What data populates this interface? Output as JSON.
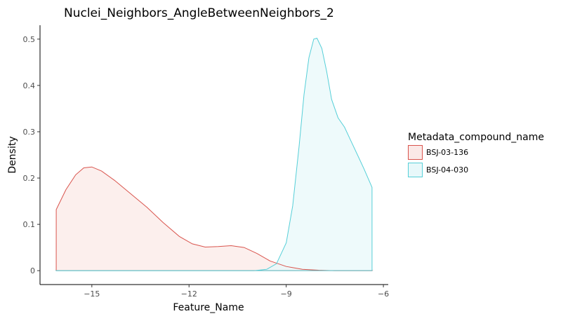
{
  "chart_data": {
    "type": "area",
    "title": "Nuclei_Neighbors_AngleBetweenNeighbors_2",
    "xlabel": "Feature_Name",
    "ylabel": "Density",
    "xlim": [
      -16.6,
      -5.85
    ],
    "ylim": [
      -0.03,
      0.53
    ],
    "xticks": [
      -15,
      -12,
      -9,
      -6
    ],
    "xtick_labels": [
      "−15",
      "−12",
      "−9",
      "−6"
    ],
    "yticks": [
      0,
      0.1,
      0.2,
      0.3,
      0.4,
      0.5
    ],
    "ytick_labels": [
      "0",
      "0.1",
      "0.2",
      "0.3",
      "0.4",
      "0.5"
    ],
    "grid": false,
    "legend": {
      "title": "Metadata_compound_name",
      "position": "right"
    },
    "series": [
      {
        "name": "BSJ-03-136",
        "line_color": "#d9544d",
        "fill_color": "#fbe9e7",
        "x": [
          -16.1,
          -15.8,
          -15.5,
          -15.25,
          -15.0,
          -14.7,
          -14.3,
          -13.8,
          -13.3,
          -12.8,
          -12.3,
          -11.9,
          -11.5,
          -11.1,
          -10.7,
          -10.3,
          -9.9,
          -9.5,
          -9.0,
          -8.5,
          -8.0,
          -7.5,
          -7.0,
          -6.6,
          -6.35
        ],
        "y": [
          0.132,
          0.175,
          0.207,
          0.222,
          0.224,
          0.215,
          0.195,
          0.166,
          0.137,
          0.104,
          0.074,
          0.058,
          0.051,
          0.052,
          0.054,
          0.05,
          0.037,
          0.021,
          0.009,
          0.003,
          0.001,
          0.0,
          0.0,
          0.0,
          0.0
        ]
      },
      {
        "name": "BSJ-04-030",
        "line_color": "#56cfd8",
        "fill_color": "#e8f8fa",
        "x": [
          -16.1,
          -11.0,
          -10.0,
          -9.6,
          -9.3,
          -9.0,
          -8.8,
          -8.6,
          -8.45,
          -8.3,
          -8.15,
          -8.05,
          -7.9,
          -7.75,
          -7.6,
          -7.4,
          -7.2,
          -7.0,
          -6.8,
          -6.6,
          -6.35
        ],
        "y": [
          0.0,
          0.0,
          0.0,
          0.003,
          0.015,
          0.06,
          0.14,
          0.27,
          0.38,
          0.46,
          0.5,
          0.502,
          0.48,
          0.43,
          0.37,
          0.33,
          0.31,
          0.28,
          0.25,
          0.22,
          0.18
        ]
      }
    ]
  }
}
